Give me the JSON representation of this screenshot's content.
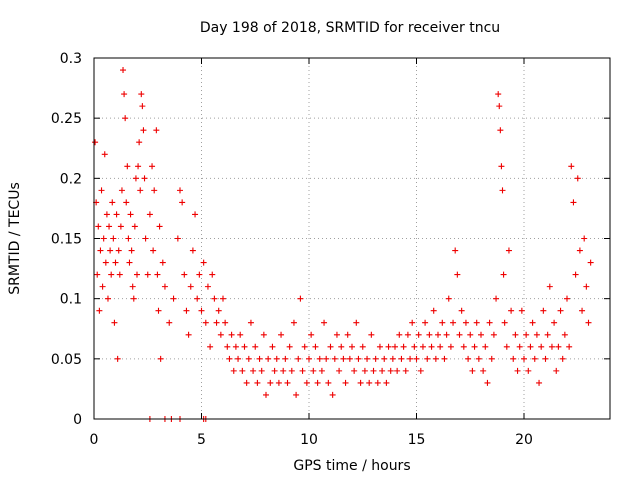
{
  "chart_data": {
    "type": "scatter",
    "title": "Day 198 of 2018, SRMTID for receiver tncu",
    "xlabel": "GPS time / hours",
    "ylabel": "SRMTID / TECUs",
    "xlim": [
      0,
      24
    ],
    "ylim": [
      0,
      0.3
    ],
    "xticks": [
      0,
      5,
      10,
      15,
      20
    ],
    "xtick_labels": [
      "0",
      "5",
      "10",
      "15",
      "20"
    ],
    "yticks": [
      0,
      0.05,
      0.1,
      0.15,
      0.2,
      0.25,
      0.3
    ],
    "ytick_labels": [
      "0",
      "0.05",
      "0.1",
      "0.15",
      "0.2",
      "0.25",
      "0.3"
    ],
    "grid": true,
    "marker": "+",
    "color": "#ee0000",
    "series": [
      {
        "points": [
          [
            0.05,
            0.23
          ],
          [
            0.1,
            0.18
          ],
          [
            0.15,
            0.12
          ],
          [
            0.2,
            0.16
          ],
          [
            0.25,
            0.09
          ],
          [
            0.3,
            0.14
          ],
          [
            0.35,
            0.19
          ],
          [
            0.4,
            0.11
          ],
          [
            0.45,
            0.15
          ],
          [
            0.5,
            0.22
          ],
          [
            0.55,
            0.13
          ],
          [
            0.6,
            0.17
          ],
          [
            0.65,
            0.1
          ],
          [
            0.7,
            0.16
          ],
          [
            0.75,
            0.14
          ],
          [
            0.8,
            0.12
          ],
          [
            0.85,
            0.18
          ],
          [
            0.9,
            0.15
          ],
          [
            0.95,
            0.08
          ],
          [
            1.0,
            0.13
          ],
          [
            1.05,
            0.17
          ],
          [
            1.1,
            0.05
          ],
          [
            1.15,
            0.14
          ],
          [
            1.2,
            0.12
          ],
          [
            1.25,
            0.16
          ],
          [
            1.3,
            0.19
          ],
          [
            1.35,
            0.29
          ],
          [
            1.4,
            0.27
          ],
          [
            1.45,
            0.25
          ],
          [
            1.5,
            0.18
          ],
          [
            1.55,
            0.21
          ],
          [
            1.6,
            0.15
          ],
          [
            1.65,
            0.13
          ],
          [
            1.7,
            0.17
          ],
          [
            1.75,
            0.14
          ],
          [
            1.8,
            0.11
          ],
          [
            1.85,
            0.1
          ],
          [
            1.9,
            0.16
          ],
          [
            1.95,
            0.2
          ],
          [
            2.0,
            0.12
          ],
          [
            2.05,
            0.21
          ],
          [
            2.1,
            0.23
          ],
          [
            2.15,
            0.19
          ],
          [
            2.2,
            0.27
          ],
          [
            2.25,
            0.26
          ],
          [
            2.3,
            0.24
          ],
          [
            2.35,
            0.2
          ],
          [
            2.4,
            0.15
          ],
          [
            2.5,
            0.12
          ],
          [
            2.6,
            0.17
          ],
          [
            2.7,
            0.21
          ],
          [
            2.75,
            0.14
          ],
          [
            2.8,
            0.19
          ],
          [
            2.9,
            0.24
          ],
          [
            2.95,
            0.12
          ],
          [
            3.0,
            0.09
          ],
          [
            3.05,
            0.16
          ],
          [
            3.1,
            0.05
          ],
          [
            3.2,
            0.13
          ],
          [
            3.3,
            0.11
          ],
          [
            3.5,
            0.08
          ],
          [
            3.7,
            0.1
          ],
          [
            3.9,
            0.15
          ],
          [
            4.0,
            0.19
          ],
          [
            4.1,
            0.18
          ],
          [
            4.2,
            0.12
          ],
          [
            4.3,
            0.09
          ],
          [
            4.4,
            0.07
          ],
          [
            4.5,
            0.11
          ],
          [
            4.6,
            0.14
          ],
          [
            4.7,
            0.17
          ],
          [
            4.8,
            0.1
          ],
          [
            4.9,
            0.12
          ],
          [
            5.0,
            0.09
          ],
          [
            5.1,
            0.13
          ],
          [
            5.2,
            0.08
          ],
          [
            5.3,
            0.11
          ],
          [
            5.4,
            0.06
          ],
          [
            5.5,
            0.12
          ],
          [
            5.6,
            0.1
          ],
          [
            5.7,
            0.08
          ],
          [
            5.8,
            0.09
          ],
          [
            5.9,
            0.07
          ],
          [
            6.0,
            0.1
          ],
          [
            6.1,
            0.08
          ],
          [
            6.2,
            0.06
          ],
          [
            6.3,
            0.05
          ],
          [
            6.4,
            0.07
          ],
          [
            6.5,
            0.04
          ],
          [
            6.6,
            0.06
          ],
          [
            6.7,
            0.05
          ],
          [
            6.8,
            0.07
          ],
          [
            6.9,
            0.04
          ],
          [
            7.0,
            0.06
          ],
          [
            7.1,
            0.03
          ],
          [
            7.2,
            0.05
          ],
          [
            7.3,
            0.08
          ],
          [
            7.4,
            0.04
          ],
          [
            7.5,
            0.06
          ],
          [
            7.6,
            0.03
          ],
          [
            7.7,
            0.05
          ],
          [
            7.8,
            0.04
          ],
          [
            7.9,
            0.07
          ],
          [
            8.0,
            0.02
          ],
          [
            8.1,
            0.05
          ],
          [
            8.2,
            0.03
          ],
          [
            8.3,
            0.06
          ],
          [
            8.4,
            0.04
          ],
          [
            8.5,
            0.05
          ],
          [
            8.6,
            0.03
          ],
          [
            8.7,
            0.07
          ],
          [
            8.8,
            0.04
          ],
          [
            8.9,
            0.05
          ],
          [
            9.0,
            0.03
          ],
          [
            9.1,
            0.06
          ],
          [
            9.2,
            0.04
          ],
          [
            9.3,
            0.08
          ],
          [
            9.4,
            0.02
          ],
          [
            9.5,
            0.05
          ],
          [
            9.6,
            0.1
          ],
          [
            9.7,
            0.04
          ],
          [
            9.8,
            0.06
          ],
          [
            9.9,
            0.03
          ],
          [
            10.0,
            0.05
          ],
          [
            10.1,
            0.07
          ],
          [
            10.2,
            0.04
          ],
          [
            10.3,
            0.06
          ],
          [
            10.4,
            0.03
          ],
          [
            10.5,
            0.05
          ],
          [
            10.6,
            0.04
          ],
          [
            10.7,
            0.08
          ],
          [
            10.8,
            0.05
          ],
          [
            10.9,
            0.03
          ],
          [
            11.0,
            0.06
          ],
          [
            11.1,
            0.02
          ],
          [
            11.2,
            0.05
          ],
          [
            11.3,
            0.07
          ],
          [
            11.4,
            0.04
          ],
          [
            11.5,
            0.06
          ],
          [
            11.6,
            0.05
          ],
          [
            11.7,
            0.03
          ],
          [
            11.8,
            0.07
          ],
          [
            11.9,
            0.05
          ],
          [
            12.0,
            0.06
          ],
          [
            12.1,
            0.04
          ],
          [
            12.2,
            0.08
          ],
          [
            12.3,
            0.05
          ],
          [
            12.4,
            0.03
          ],
          [
            12.5,
            0.06
          ],
          [
            12.6,
            0.04
          ],
          [
            12.7,
            0.05
          ],
          [
            12.8,
            0.03
          ],
          [
            12.9,
            0.07
          ],
          [
            13.0,
            0.04
          ],
          [
            13.1,
            0.05
          ],
          [
            13.2,
            0.03
          ],
          [
            13.3,
            0.06
          ],
          [
            13.4,
            0.04
          ],
          [
            13.5,
            0.05
          ],
          [
            13.6,
            0.03
          ],
          [
            13.7,
            0.06
          ],
          [
            13.8,
            0.04
          ],
          [
            13.9,
            0.05
          ],
          [
            14.0,
            0.06
          ],
          [
            14.1,
            0.04
          ],
          [
            14.2,
            0.07
          ],
          [
            14.3,
            0.05
          ],
          [
            14.4,
            0.06
          ],
          [
            14.5,
            0.04
          ],
          [
            14.6,
            0.07
          ],
          [
            14.7,
            0.05
          ],
          [
            14.8,
            0.08
          ],
          [
            14.9,
            0.06
          ],
          [
            15.0,
            0.05
          ],
          [
            15.1,
            0.07
          ],
          [
            15.2,
            0.04
          ],
          [
            15.3,
            0.06
          ],
          [
            15.4,
            0.08
          ],
          [
            15.5,
            0.05
          ],
          [
            15.6,
            0.07
          ],
          [
            15.7,
            0.06
          ],
          [
            15.8,
            0.09
          ],
          [
            15.9,
            0.05
          ],
          [
            16.0,
            0.07
          ],
          [
            16.1,
            0.06
          ],
          [
            16.2,
            0.08
          ],
          [
            16.3,
            0.05
          ],
          [
            16.4,
            0.07
          ],
          [
            16.5,
            0.1
          ],
          [
            16.6,
            0.06
          ],
          [
            16.7,
            0.08
          ],
          [
            16.8,
            0.14
          ],
          [
            16.9,
            0.12
          ],
          [
            17.0,
            0.07
          ],
          [
            17.1,
            0.09
          ],
          [
            17.2,
            0.06
          ],
          [
            17.3,
            0.08
          ],
          [
            17.4,
            0.05
          ],
          [
            17.5,
            0.07
          ],
          [
            17.6,
            0.04
          ],
          [
            17.7,
            0.06
          ],
          [
            17.8,
            0.08
          ],
          [
            17.9,
            0.05
          ],
          [
            18.0,
            0.07
          ],
          [
            18.1,
            0.04
          ],
          [
            18.2,
            0.06
          ],
          [
            18.3,
            0.03
          ],
          [
            18.4,
            0.08
          ],
          [
            18.5,
            0.05
          ],
          [
            18.6,
            0.07
          ],
          [
            18.7,
            0.1
          ],
          [
            18.8,
            0.27
          ],
          [
            18.85,
            0.26
          ],
          [
            18.9,
            0.24
          ],
          [
            18.95,
            0.21
          ],
          [
            19.0,
            0.19
          ],
          [
            19.05,
            0.12
          ],
          [
            19.1,
            0.08
          ],
          [
            19.2,
            0.06
          ],
          [
            19.3,
            0.14
          ],
          [
            19.4,
            0.09
          ],
          [
            19.5,
            0.05
          ],
          [
            19.6,
            0.07
          ],
          [
            19.7,
            0.04
          ],
          [
            19.8,
            0.06
          ],
          [
            19.9,
            0.09
          ],
          [
            20.0,
            0.05
          ],
          [
            20.1,
            0.07
          ],
          [
            20.2,
            0.04
          ],
          [
            20.3,
            0.06
          ],
          [
            20.4,
            0.08
          ],
          [
            20.5,
            0.05
          ],
          [
            20.6,
            0.07
          ],
          [
            20.7,
            0.03
          ],
          [
            20.8,
            0.06
          ],
          [
            20.9,
            0.09
          ],
          [
            21.0,
            0.05
          ],
          [
            21.1,
            0.07
          ],
          [
            21.2,
            0.11
          ],
          [
            21.3,
            0.06
          ],
          [
            21.4,
            0.08
          ],
          [
            21.5,
            0.04
          ],
          [
            21.6,
            0.06
          ],
          [
            21.7,
            0.09
          ],
          [
            21.8,
            0.05
          ],
          [
            21.9,
            0.07
          ],
          [
            22.0,
            0.1
          ],
          [
            22.1,
            0.06
          ],
          [
            22.2,
            0.21
          ],
          [
            22.3,
            0.18
          ],
          [
            22.4,
            0.12
          ],
          [
            22.5,
            0.2
          ],
          [
            22.6,
            0.14
          ],
          [
            22.7,
            0.09
          ],
          [
            22.8,
            0.15
          ],
          [
            22.9,
            0.11
          ],
          [
            23.0,
            0.08
          ],
          [
            23.1,
            0.13
          ],
          [
            2.6,
            0.0
          ],
          [
            3.3,
            0.0
          ],
          [
            3.6,
            0.0
          ],
          [
            4.0,
            0.0
          ],
          [
            5.1,
            0.0
          ],
          [
            5.2,
            0.0
          ]
        ]
      }
    ]
  }
}
